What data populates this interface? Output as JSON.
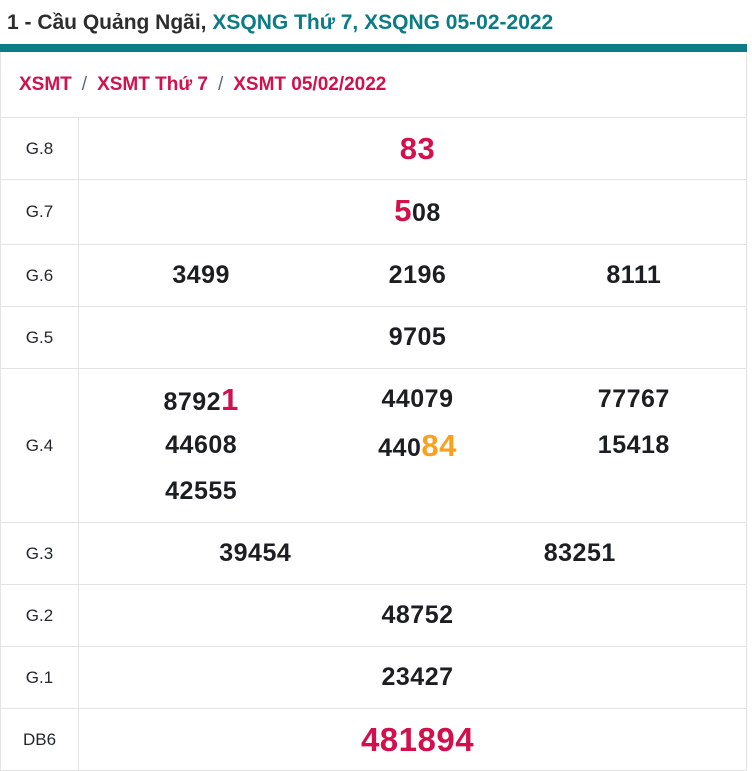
{
  "title": {
    "prefix": "1 - Cầu Quảng Ngãi,",
    "part2": "XSQNG Thứ 7,",
    "part3": "XSQNG 05-02-2022"
  },
  "breadcrumb": {
    "separator": "/",
    "items": [
      "XSMT",
      "XSMT Thứ 7",
      "XSMT 05/02/2022"
    ]
  },
  "colors": {
    "teal": "#0b7c85",
    "red": "#d2104c",
    "orange": "#f9a11c",
    "border": "#e3e3e3"
  },
  "table": {
    "rows": [
      {
        "label": "G.8",
        "cols": 1,
        "cells": [
          [
            {
              "t": "83",
              "c": "red",
              "s": "big"
            }
          ]
        ]
      },
      {
        "label": "G.7",
        "cols": 1,
        "cells": [
          [
            {
              "t": "5",
              "c": "red",
              "s": "big"
            },
            {
              "t": "08"
            }
          ]
        ]
      },
      {
        "label": "G.6",
        "cols": 3,
        "cells": [
          [
            {
              "t": "3499"
            }
          ],
          [
            {
              "t": "2196"
            }
          ],
          [
            {
              "t": "8111"
            }
          ]
        ]
      },
      {
        "label": "G.5",
        "cols": 1,
        "cells": [
          [
            {
              "t": "9705"
            }
          ]
        ]
      },
      {
        "label": "G.4",
        "cols": 3,
        "cells": [
          [
            {
              "t": "8792"
            },
            {
              "t": "1",
              "c": "red",
              "s": "big"
            }
          ],
          [
            {
              "t": "44079"
            }
          ],
          [
            {
              "t": "77767"
            }
          ],
          [
            {
              "t": "44608"
            }
          ],
          [
            {
              "t": "440"
            },
            {
              "t": "84",
              "c": "orange",
              "s": "big"
            }
          ],
          [
            {
              "t": "15418"
            }
          ],
          [
            {
              "t": "42555"
            }
          ]
        ]
      },
      {
        "label": "G.3",
        "cols": 2,
        "cells": [
          [
            {
              "t": "39454"
            }
          ],
          [
            {
              "t": "83251"
            }
          ]
        ]
      },
      {
        "label": "G.2",
        "cols": 1,
        "cells": [
          [
            {
              "t": "48752"
            }
          ]
        ]
      },
      {
        "label": "G.1",
        "cols": 1,
        "cells": [
          [
            {
              "t": "23427"
            }
          ]
        ]
      },
      {
        "label": "DB6",
        "cols": 1,
        "cells": [
          [
            {
              "t": "481894",
              "c": "red",
              "s": "big"
            }
          ]
        ]
      }
    ]
  }
}
